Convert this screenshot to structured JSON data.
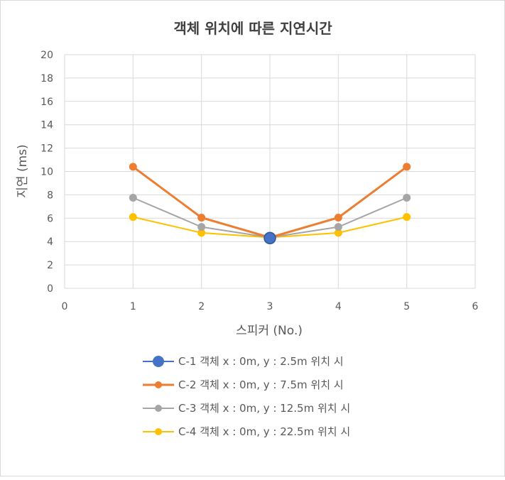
{
  "chart_data": {
    "type": "line",
    "title": "객체 위치에 따른 지연시간",
    "xlabel": "스피커 (No.)",
    "ylabel": "지연 (ms)",
    "xlim": [
      0,
      6
    ],
    "ylim": [
      0,
      20
    ],
    "x_ticks": [
      "0",
      "1",
      "2",
      "3",
      "4",
      "5",
      "6"
    ],
    "y_ticks": [
      "0",
      "2",
      "4",
      "6",
      "8",
      "10",
      "12",
      "14",
      "16",
      "18",
      "20"
    ],
    "grid": true,
    "legend_position": "bottom",
    "series": [
      {
        "name": "C-1 객체 x : 0m, y : 2.5m 위치 시",
        "color": "#4472C4",
        "x": [
          3
        ],
        "values": [
          4.3
        ]
      },
      {
        "name": "C-2 객체 x : 0m, y : 7.5m 위치 시",
        "color": "#ED7D31",
        "x": [
          1,
          2,
          3,
          4,
          5
        ],
        "values": [
          10.4,
          6.05,
          4.35,
          6.05,
          10.4
        ]
      },
      {
        "name": "C-3 객체 x : 0m, y : 12.5m 위치 시",
        "color": "#A5A5A5",
        "x": [
          1,
          2,
          3,
          4,
          5
        ],
        "values": [
          7.75,
          5.25,
          4.35,
          5.25,
          7.75
        ]
      },
      {
        "name": "C-4 객체 x : 0m, y : 22.5m 위치 시",
        "color": "#FFC000",
        "x": [
          1,
          2,
          3,
          4,
          5
        ],
        "values": [
          6.1,
          4.75,
          4.35,
          4.75,
          6.1
        ]
      }
    ]
  }
}
